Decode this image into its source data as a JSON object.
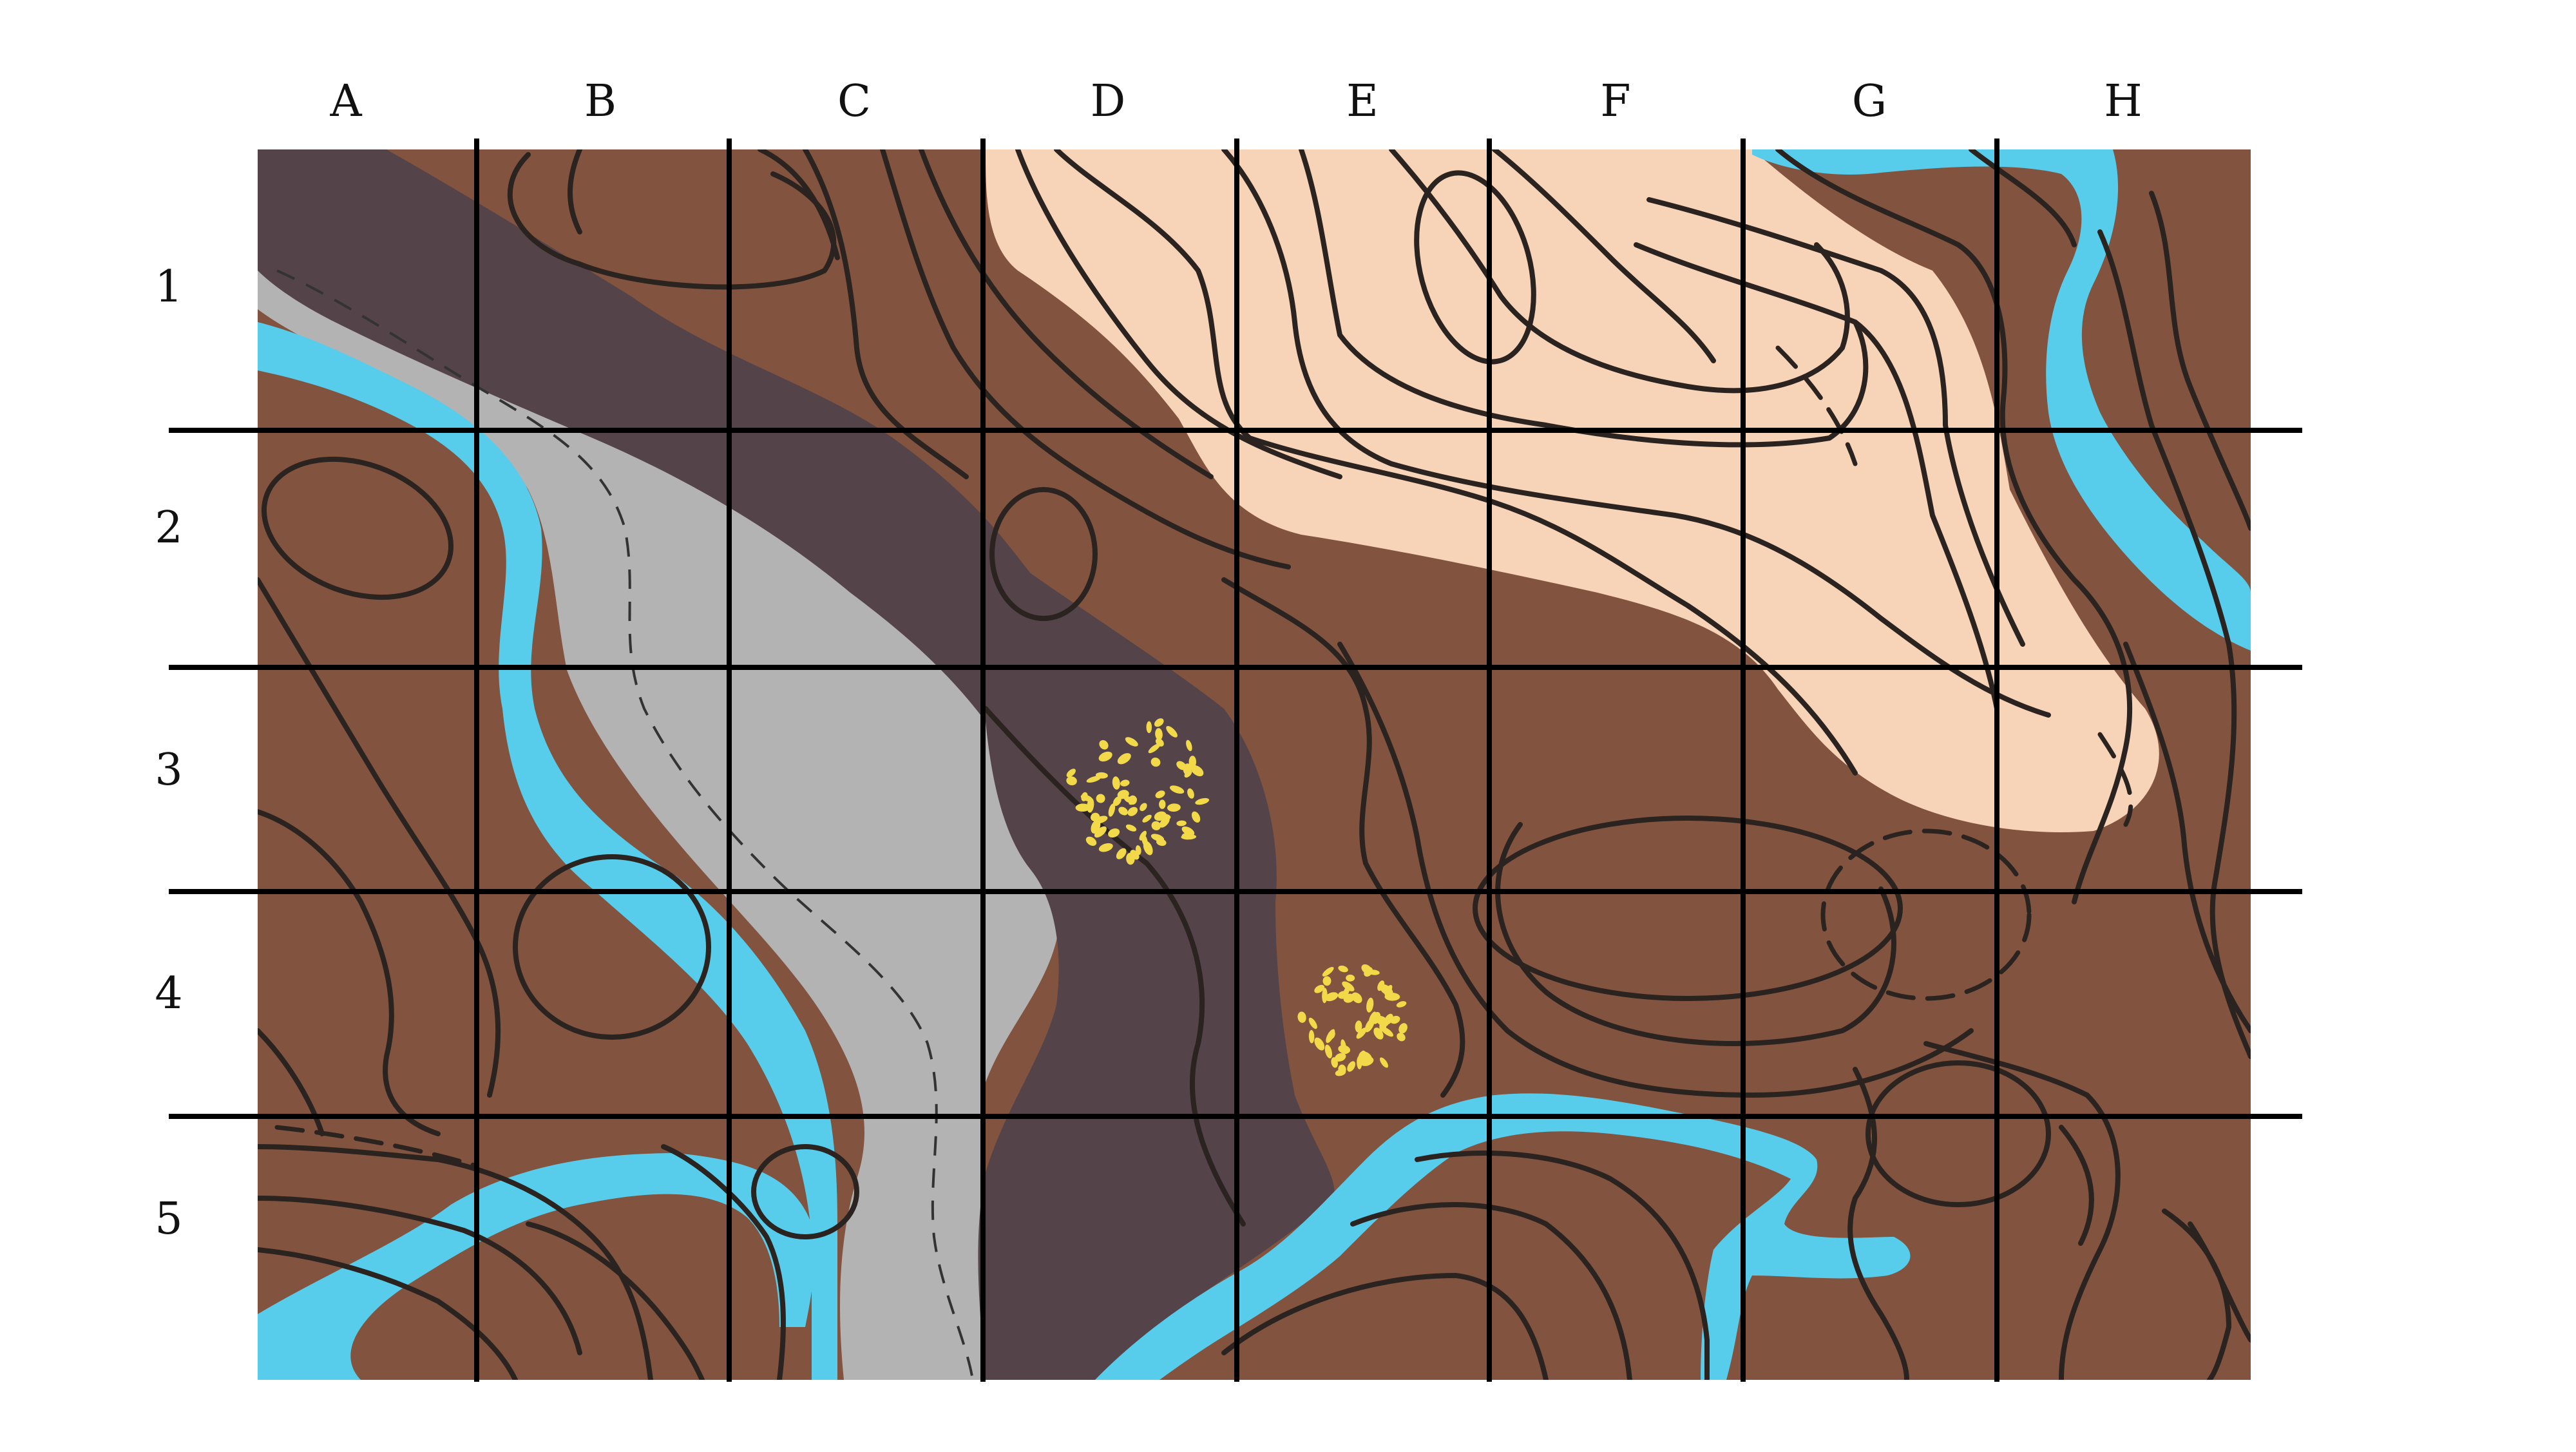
{
  "map": {
    "columns": [
      "A",
      "B",
      "C",
      "D",
      "E",
      "F",
      "G",
      "H"
    ],
    "rows": [
      "1",
      "2",
      "3",
      "4",
      "5"
    ]
  },
  "colors": {
    "terrain": "#82543f",
    "highland": "#f7d3b7",
    "lowland_dark": "#54444a",
    "valley_gray": "#b3b3b3",
    "river": "#57cdeb",
    "contour": "#2a2320",
    "dots": "#f2d94a"
  }
}
